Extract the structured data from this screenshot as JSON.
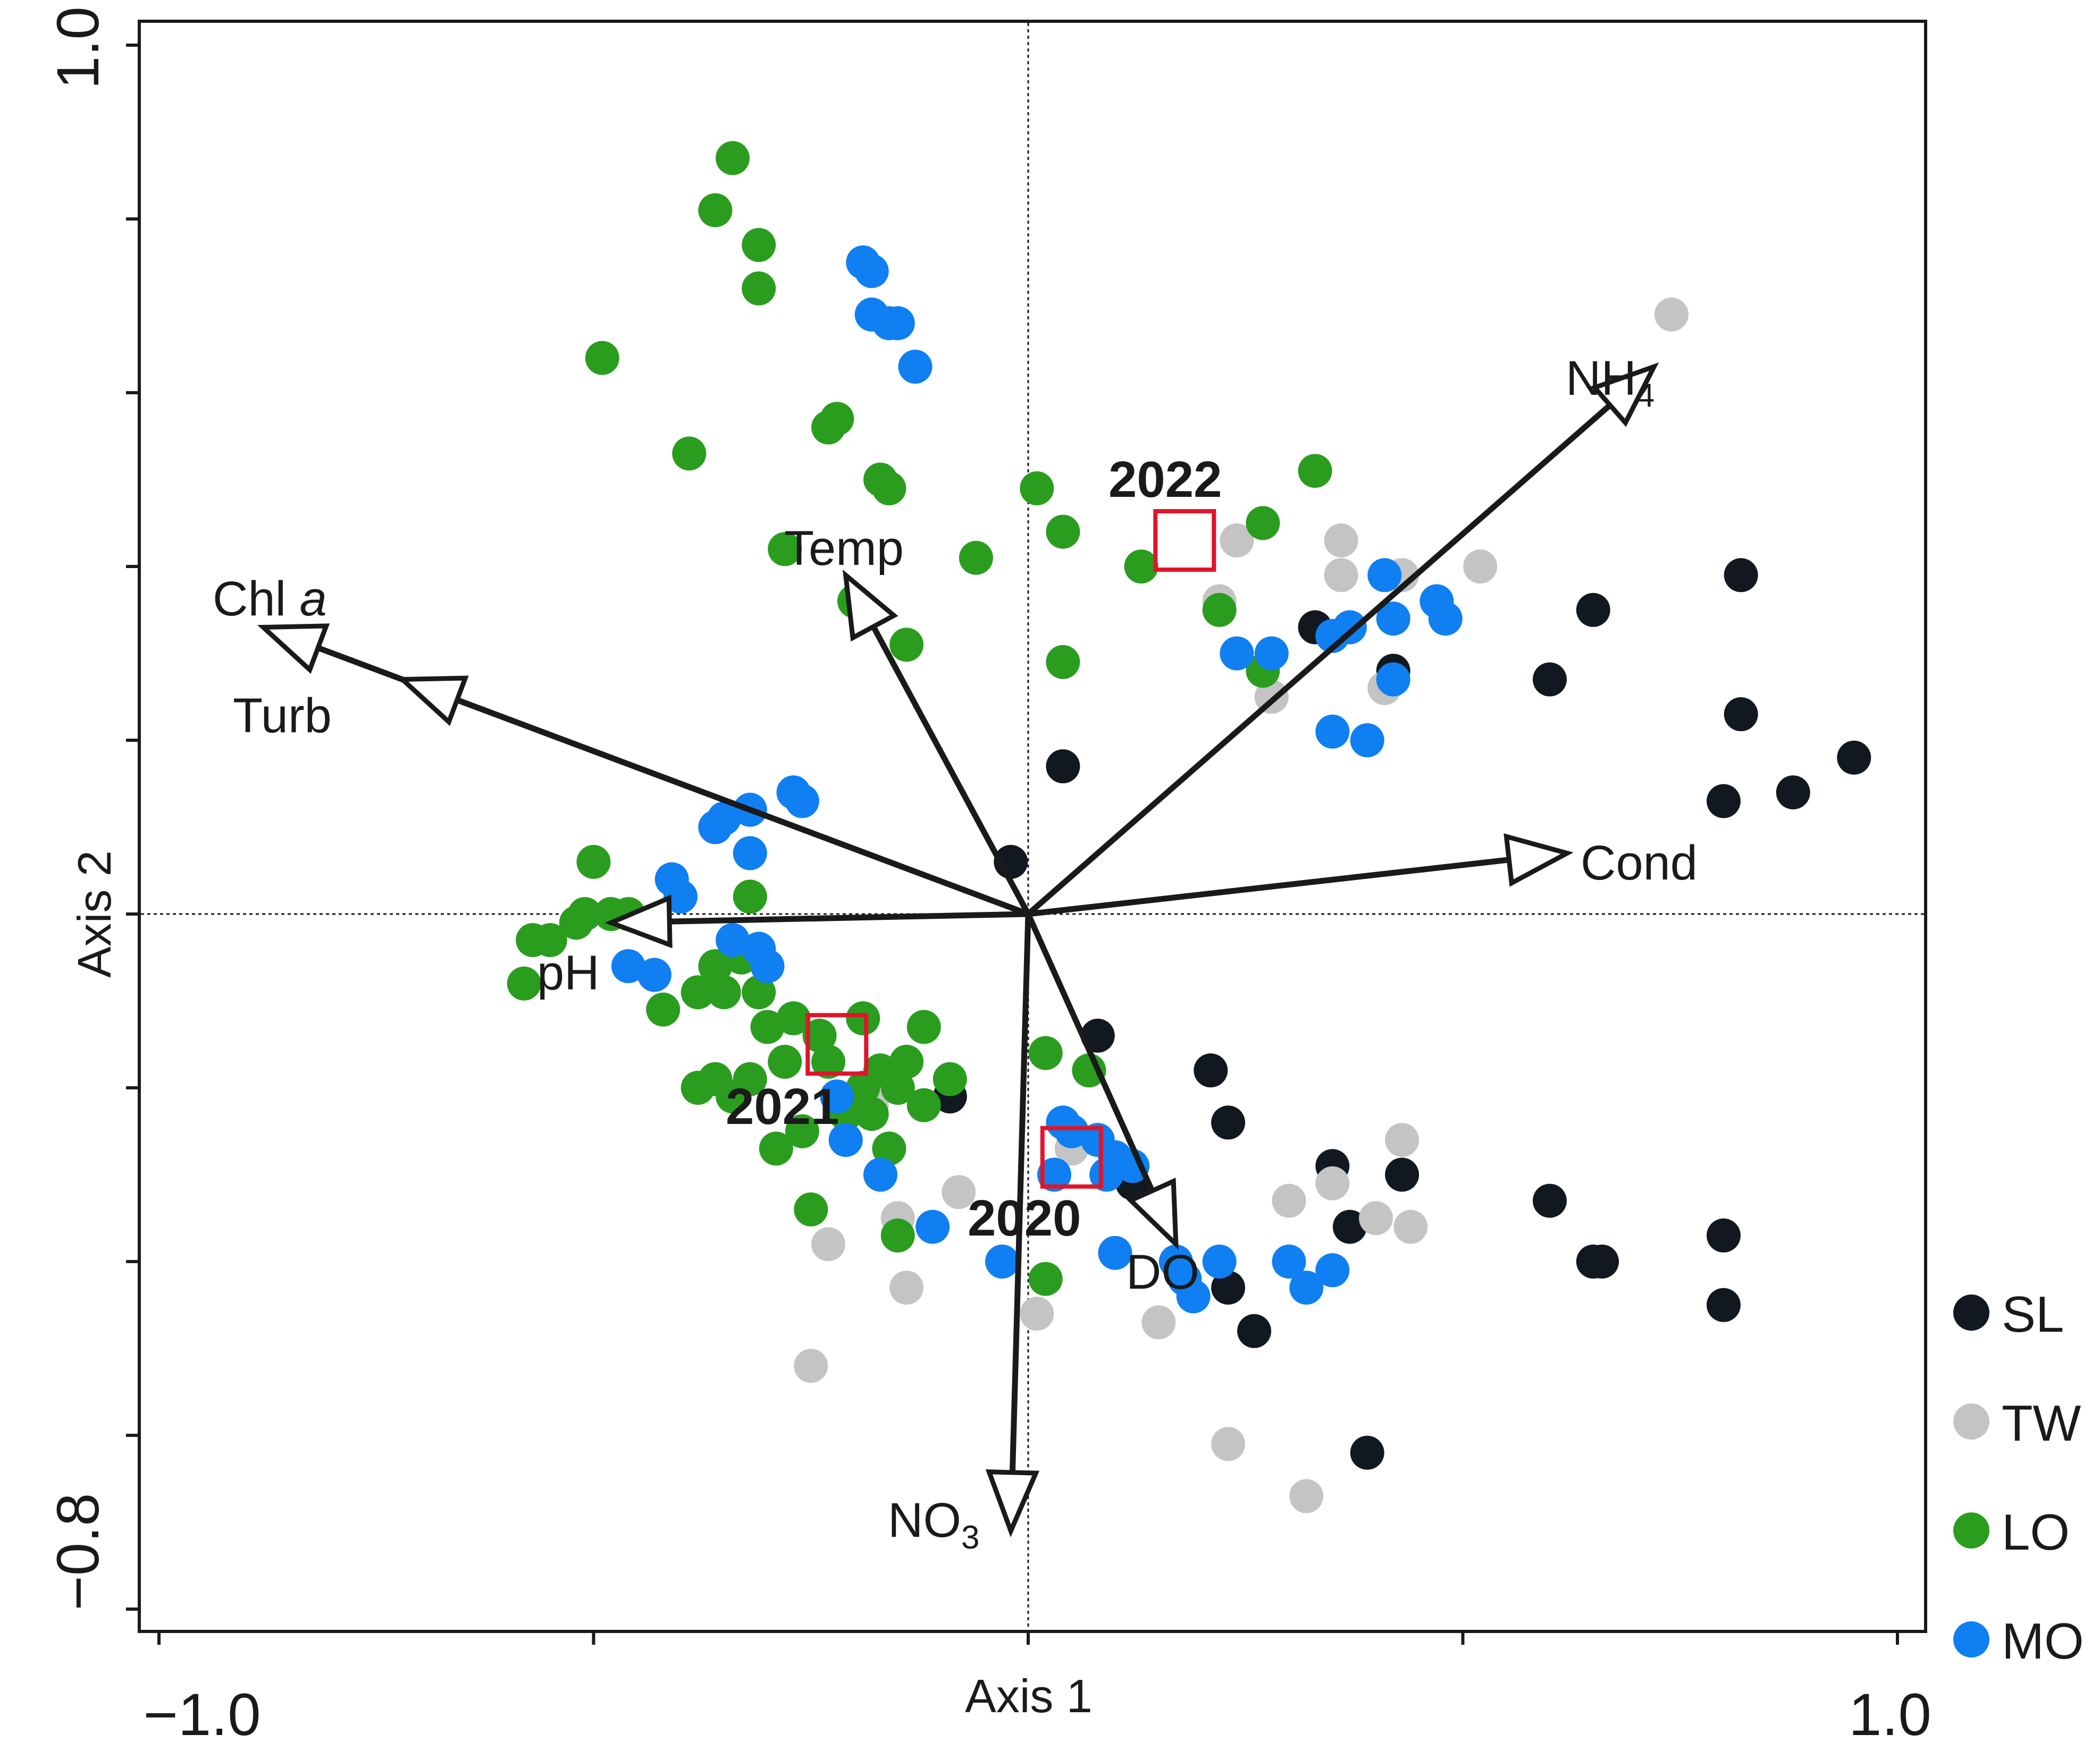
{
  "chart_data": {
    "type": "scatter",
    "subtype": "ordination biplot",
    "xlabel": "Axis 1",
    "ylabel": "Axis 2",
    "xlim": [
      -1.0,
      1.0
    ],
    "ylim": [
      -0.8,
      1.0
    ],
    "xtick_labels": [
      {
        "value": -1.0,
        "label": "−1.0"
      },
      {
        "value": 1.0,
        "label": "1.0"
      }
    ],
    "ytick_labels": [
      {
        "value": 1.0,
        "label": "1.0"
      },
      {
        "value": -0.8,
        "label": "−0.8"
      }
    ],
    "xticks": [
      -1.0,
      -0.5,
      0.0,
      0.5,
      1.0
    ],
    "yticks": [
      1.0,
      0.8,
      0.6,
      0.4,
      0.2,
      0.0,
      -0.2,
      -0.4,
      -0.6,
      -0.8
    ],
    "reference_lines": {
      "x": 0.0,
      "y": 0.0
    },
    "legend_position": "bottom-right",
    "series": [
      {
        "name": "SL",
        "color": "#111820",
        "points": [
          [
            0.82,
            0.39
          ],
          [
            0.65,
            0.35
          ],
          [
            0.82,
            0.23
          ],
          [
            0.95,
            0.18
          ],
          [
            0.88,
            0.14
          ],
          [
            0.8,
            0.13
          ],
          [
            0.6,
            0.27
          ],
          [
            0.33,
            0.33
          ],
          [
            0.42,
            0.28
          ],
          [
            0.04,
            0.17
          ],
          [
            -0.02,
            0.06
          ],
          [
            0.08,
            -0.14
          ],
          [
            0.21,
            -0.18
          ],
          [
            0.23,
            -0.24
          ],
          [
            0.35,
            -0.29
          ],
          [
            0.43,
            -0.3
          ],
          [
            0.6,
            -0.33
          ],
          [
            0.37,
            -0.36
          ],
          [
            0.8,
            -0.37
          ],
          [
            0.65,
            -0.4
          ],
          [
            0.66,
            -0.4
          ],
          [
            0.8,
            -0.45
          ],
          [
            0.23,
            -0.43
          ],
          [
            0.26,
            -0.48
          ],
          [
            0.39,
            -0.62
          ],
          [
            -0.09,
            -0.21
          ],
          [
            0.12,
            -0.31
          ]
        ]
      },
      {
        "name": "TW",
        "color": "#c4c4c4",
        "points": [
          [
            0.74,
            0.69
          ],
          [
            0.24,
            0.43
          ],
          [
            0.36,
            0.43
          ],
          [
            0.36,
            0.39
          ],
          [
            0.43,
            0.39
          ],
          [
            0.52,
            0.4
          ],
          [
            0.22,
            0.36
          ],
          [
            0.28,
            0.25
          ],
          [
            0.41,
            0.26
          ],
          [
            0.35,
            -0.31
          ],
          [
            0.43,
            -0.26
          ],
          [
            0.4,
            -0.35
          ],
          [
            0.3,
            -0.33
          ],
          [
            0.44,
            -0.36
          ],
          [
            -0.17,
            -0.2
          ],
          [
            -0.18,
            -0.22
          ],
          [
            -0.08,
            -0.32
          ],
          [
            -0.15,
            -0.35
          ],
          [
            -0.23,
            -0.38
          ],
          [
            -0.14,
            -0.43
          ],
          [
            0.01,
            -0.46
          ],
          [
            0.15,
            -0.47
          ],
          [
            -0.25,
            -0.52
          ],
          [
            0.23,
            -0.61
          ],
          [
            0.32,
            -0.67
          ],
          [
            0.04,
            -0.24
          ],
          [
            0.05,
            -0.27
          ]
        ]
      },
      {
        "name": "LO",
        "color": "#2a9d1e",
        "points": [
          [
            -0.34,
            0.87
          ],
          [
            -0.36,
            0.81
          ],
          [
            -0.31,
            0.77
          ],
          [
            -0.31,
            0.72
          ],
          [
            -0.49,
            0.64
          ],
          [
            -0.22,
            0.57
          ],
          [
            -0.23,
            0.56
          ],
          [
            -0.39,
            0.53
          ],
          [
            -0.17,
            0.5
          ],
          [
            -0.16,
            0.49
          ],
          [
            0.01,
            0.49
          ],
          [
            0.33,
            0.51
          ],
          [
            0.27,
            0.45
          ],
          [
            0.04,
            0.44
          ],
          [
            -0.28,
            0.42
          ],
          [
            -0.06,
            0.41
          ],
          [
            0.13,
            0.4
          ],
          [
            -0.2,
            0.36
          ],
          [
            0.22,
            0.35
          ],
          [
            -0.14,
            0.31
          ],
          [
            0.04,
            0.29
          ],
          [
            0.27,
            0.28
          ],
          [
            -0.5,
            0.06
          ],
          [
            -0.32,
            0.02
          ],
          [
            -0.51,
            0.0
          ],
          [
            -0.48,
            0.0
          ],
          [
            -0.46,
            0.0
          ],
          [
            -0.52,
            -0.01
          ],
          [
            -0.57,
            -0.03
          ],
          [
            -0.55,
            -0.03
          ],
          [
            -0.58,
            -0.08
          ],
          [
            -0.36,
            -0.06
          ],
          [
            -0.33,
            -0.05
          ],
          [
            -0.31,
            -0.09
          ],
          [
            -0.38,
            -0.09
          ],
          [
            -0.35,
            -0.09
          ],
          [
            -0.3,
            -0.13
          ],
          [
            -0.27,
            -0.12
          ],
          [
            -0.24,
            -0.14
          ],
          [
            -0.19,
            -0.12
          ],
          [
            -0.12,
            -0.13
          ],
          [
            -0.14,
            -0.17
          ],
          [
            -0.17,
            -0.18
          ],
          [
            -0.23,
            -0.17
          ],
          [
            -0.28,
            -0.17
          ],
          [
            -0.32,
            -0.19
          ],
          [
            -0.36,
            -0.19
          ],
          [
            -0.38,
            -0.2
          ],
          [
            -0.34,
            -0.21
          ],
          [
            -0.19,
            -0.2
          ],
          [
            -0.15,
            -0.2
          ],
          [
            -0.21,
            -0.23
          ],
          [
            -0.26,
            -0.25
          ],
          [
            -0.29,
            -0.27
          ],
          [
            -0.16,
            -0.27
          ],
          [
            -0.18,
            -0.23
          ],
          [
            -0.12,
            -0.22
          ],
          [
            -0.09,
            -0.19
          ],
          [
            -0.25,
            -0.34
          ],
          [
            -0.15,
            -0.37
          ],
          [
            0.02,
            -0.16
          ],
          [
            0.07,
            -0.18
          ],
          [
            0.02,
            -0.42
          ],
          [
            -0.42,
            -0.11
          ]
        ]
      },
      {
        "name": "MO",
        "color": "#0f7ff2",
        "points": [
          [
            -0.19,
            0.75
          ],
          [
            -0.18,
            0.74
          ],
          [
            -0.18,
            0.69
          ],
          [
            -0.16,
            0.68
          ],
          [
            -0.15,
            0.68
          ],
          [
            -0.13,
            0.63
          ],
          [
            0.41,
            0.39
          ],
          [
            0.47,
            0.36
          ],
          [
            0.48,
            0.34
          ],
          [
            0.42,
            0.34
          ],
          [
            0.37,
            0.33
          ],
          [
            0.35,
            0.32
          ],
          [
            0.24,
            0.3
          ],
          [
            0.28,
            0.3
          ],
          [
            0.42,
            0.27
          ],
          [
            0.35,
            0.21
          ],
          [
            0.39,
            0.2
          ],
          [
            -0.27,
            0.14
          ],
          [
            -0.26,
            0.13
          ],
          [
            -0.32,
            0.12
          ],
          [
            -0.35,
            0.11
          ],
          [
            -0.36,
            0.1
          ],
          [
            -0.32,
            0.07
          ],
          [
            -0.41,
            0.04
          ],
          [
            -0.4,
            0.02
          ],
          [
            -0.34,
            -0.03
          ],
          [
            -0.31,
            -0.04
          ],
          [
            -0.43,
            -0.07
          ],
          [
            -0.3,
            -0.06
          ],
          [
            -0.46,
            -0.06
          ],
          [
            0.04,
            -0.24
          ],
          [
            0.05,
            -0.25
          ],
          [
            0.08,
            -0.26
          ],
          [
            0.1,
            -0.28
          ],
          [
            0.12,
            -0.29
          ],
          [
            0.03,
            -0.3
          ],
          [
            0.09,
            -0.3
          ],
          [
            -0.21,
            -0.26
          ],
          [
            -0.17,
            -0.3
          ],
          [
            -0.22,
            -0.21
          ],
          [
            -0.11,
            -0.36
          ],
          [
            -0.03,
            -0.4
          ],
          [
            0.17,
            -0.4
          ],
          [
            0.22,
            -0.4
          ],
          [
            0.35,
            -0.41
          ],
          [
            0.3,
            -0.4
          ],
          [
            0.32,
            -0.43
          ],
          [
            0.18,
            -0.42
          ],
          [
            0.19,
            -0.44
          ],
          [
            0.1,
            -0.39
          ]
        ]
      }
    ],
    "vectors": [
      {
        "name": "NH4",
        "label": "NH",
        "subscript": "4",
        "x": 0.72,
        "y": 0.63
      },
      {
        "name": "Temp",
        "label": "Temp",
        "x": -0.21,
        "y": 0.39
      },
      {
        "name": "Chl a",
        "label": "Chl ",
        "italic": "a",
        "x": -0.88,
        "y": 0.33
      },
      {
        "name": "Turb",
        "label": "Turb",
        "x": -0.72,
        "y": 0.27
      },
      {
        "name": "Cond",
        "label": "Cond",
        "x": 0.62,
        "y": 0.07
      },
      {
        "name": "pH",
        "label": "pH",
        "x": -0.48,
        "y": -0.01
      },
      {
        "name": "DO",
        "label": "DO",
        "x": 0.17,
        "y": -0.38
      },
      {
        "name": "NO3",
        "label": "NO",
        "subscript": "3",
        "x": -0.02,
        "y": -0.71
      }
    ],
    "centroids": [
      {
        "label": "2022",
        "x": 0.18,
        "y": 0.43
      },
      {
        "label": "2021",
        "x": -0.22,
        "y": -0.15
      },
      {
        "label": "2020",
        "x": 0.05,
        "y": -0.28
      }
    ],
    "centroid_color": "#e0142a"
  }
}
